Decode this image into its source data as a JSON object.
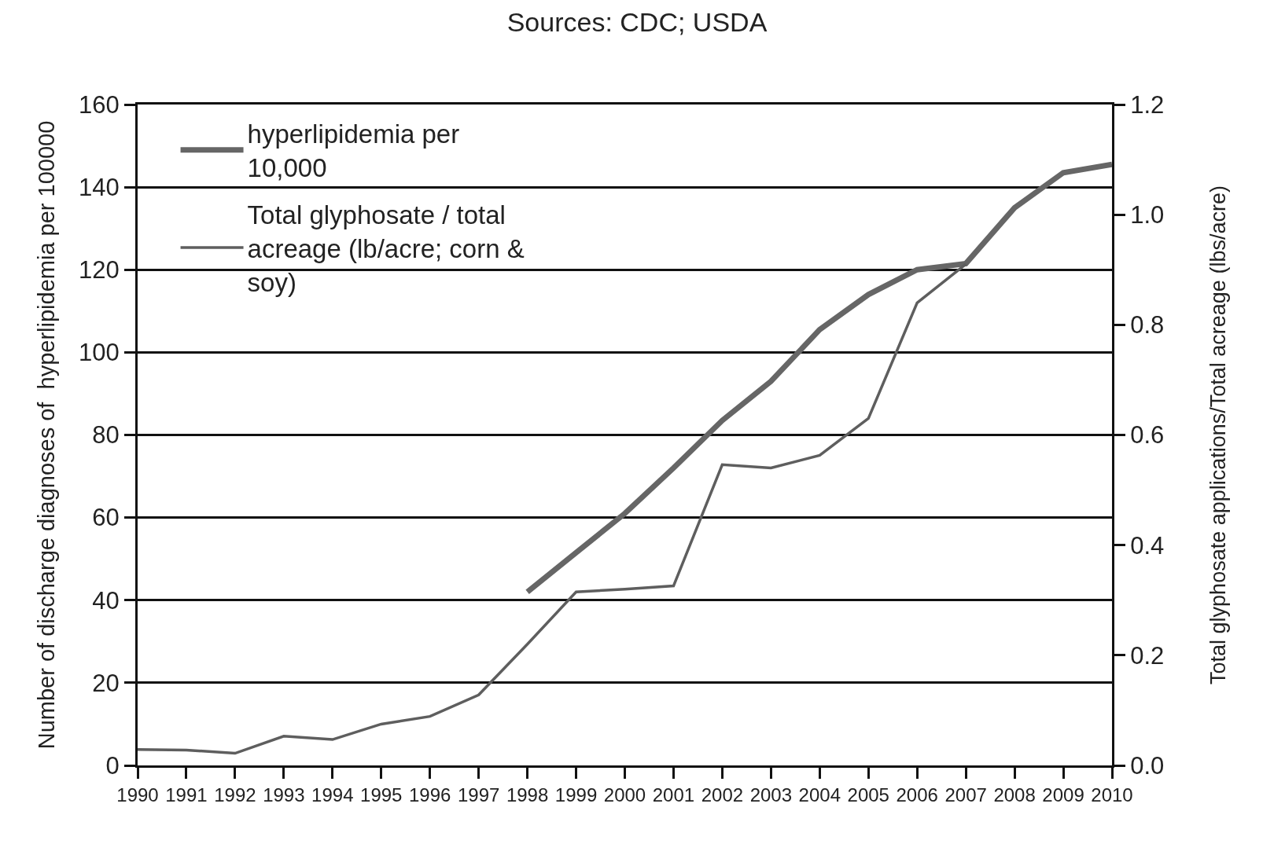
{
  "chart_data": {
    "type": "line",
    "title": "Sources: CDC; USDA",
    "ylabel": "Number of discharge diagnoses of  hyperlipidemia per 100000",
    "y2label": "Total glyphosate applications/Total acreage (lbs/acre)",
    "x": [
      1990,
      1991,
      1992,
      1993,
      1994,
      1995,
      1996,
      1997,
      1998,
      1999,
      2000,
      2001,
      2002,
      2003,
      2004,
      2005,
      2006,
      2007,
      2008,
      2009,
      2010
    ],
    "series": [
      {
        "name": "hyperlipidemia per 10,000",
        "color": "#666666",
        "values": [
          null,
          null,
          null,
          null,
          null,
          null,
          null,
          null,
          42,
          51.5,
          61,
          72,
          83.5,
          93,
          105.5,
          114,
          120,
          121.5,
          135,
          143.5,
          145.5
        ]
      },
      {
        "name": "Total glyphosate / total acreage (lb/acre; corn & soy)",
        "color": "#5e5e5e",
        "axis": "y2",
        "values": [
          0.029,
          0.028,
          0.022,
          0.053,
          0.047,
          0.075,
          0.089,
          0.128,
          0.22,
          0.315,
          0.32,
          0.326,
          0.546,
          0.54,
          0.563,
          0.63,
          0.84,
          0.91,
          null,
          null,
          null
        ]
      }
    ],
    "xlim": [
      1990,
      2010
    ],
    "xticks": [
      1990,
      1991,
      1992,
      1993,
      1994,
      1995,
      1996,
      1997,
      1998,
      1999,
      2000,
      2001,
      2002,
      2003,
      2004,
      2005,
      2006,
      2007,
      2008,
      2009,
      2010
    ],
    "ylim": [
      0,
      160
    ],
    "yticks": [
      0,
      20,
      40,
      60,
      80,
      100,
      120,
      140,
      160
    ],
    "y2lim": [
      0,
      1.2
    ],
    "y2ticks": [
      {
        "value": 0,
        "label": "0.0"
      },
      {
        "value": 0.2,
        "label": "0.2"
      },
      {
        "value": 0.4,
        "label": "0.4"
      },
      {
        "value": 0.6,
        "label": "0.6"
      },
      {
        "value": 0.8,
        "label": "0.8"
      },
      {
        "value": 1.0,
        "label": "1.0"
      },
      {
        "value": 1.2,
        "label": "1.2"
      }
    ],
    "grid": "y",
    "legend": "top left",
    "marker": "none",
    "line_style": "solid"
  }
}
